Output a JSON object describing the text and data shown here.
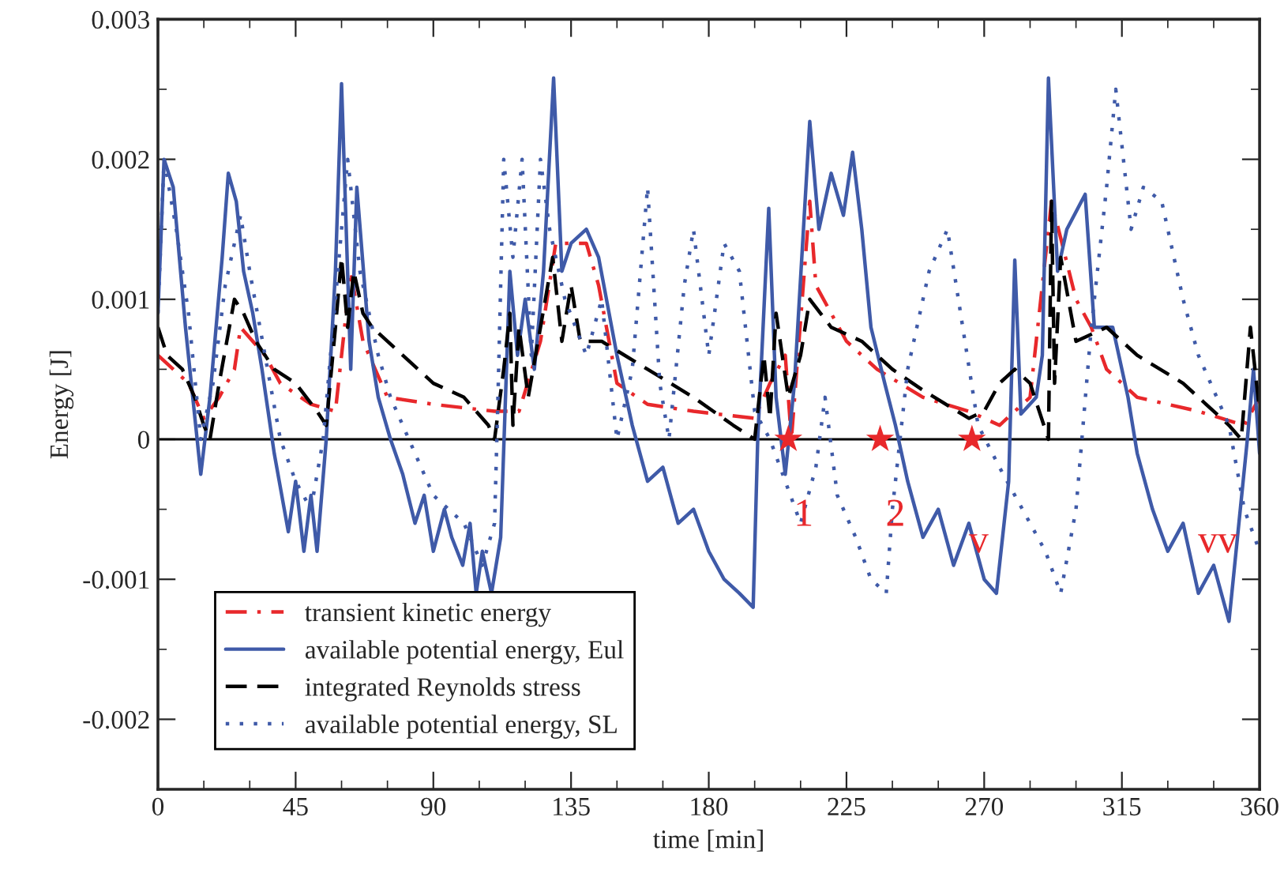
{
  "chart_data": {
    "type": "line",
    "xlabel": "time [min]",
    "ylabel": "Energy [J]",
    "xlim": [
      0,
      360
    ],
    "xticks": [
      0,
      45,
      90,
      135,
      180,
      225,
      270,
      315,
      360
    ],
    "ylim": [
      -0.0025,
      0.003
    ],
    "yticks": [
      {
        "value": -0.002,
        "label": "-0.002"
      },
      {
        "value": -0.001,
        "label": "-0.001"
      },
      {
        "value": 0,
        "label": "0"
      },
      {
        "value": 0.001,
        "label": "0.001"
      },
      {
        "value": 0.002,
        "label": "0.002"
      },
      {
        "value": 0.003,
        "label": "0.003"
      }
    ],
    "grid": false,
    "legend": "bottom left",
    "ref_lines": [
      {
        "axis": "y",
        "value": 0,
        "color": "#000000",
        "line_style": "solid"
      }
    ],
    "annotations": [
      {
        "text": "1",
        "x": 211,
        "y": -0.00055
      },
      {
        "text": "2",
        "x": 241,
        "y": -0.00055
      },
      "v",
      "vv"
    ],
    "series": [
      {
        "name": "transient kinetic energy",
        "color": "#e8282b",
        "line_style": "dashdot",
        "x": [
          0,
          10,
          15,
          20,
          25,
          27,
          35,
          40,
          50,
          58,
          60,
          63,
          67,
          75,
          90,
          110,
          118,
          125,
          130,
          140,
          144,
          150,
          160,
          175,
          195,
          200,
          205,
          207,
          213,
          215,
          225,
          235,
          250,
          265,
          275,
          285,
          292,
          300,
          305,
          310,
          320,
          340,
          355,
          360
        ],
        "values": [
          0.0006,
          0.0004,
          0.00015,
          0.0003,
          0.0005,
          0.0008,
          0.0006,
          0.0004,
          0.00025,
          0.0002,
          0.0006,
          0.0012,
          0.0007,
          0.0003,
          0.00025,
          0.0002,
          0.0002,
          0.0007,
          0.0014,
          0.0014,
          0.0011,
          0.0004,
          0.00025,
          0.0002,
          0.00015,
          0.0004,
          0.0006,
          0.0,
          0.0017,
          0.0011,
          0.0007,
          0.0005,
          0.0003,
          0.0002,
          0.0001,
          0.0003,
          0.0017,
          0.001,
          0.0008,
          0.0005,
          0.0003,
          0.0002,
          0.0001,
          0.0003
        ]
      },
      {
        "name": "available potential energy, Eul",
        "color": "#3f5aa8",
        "line_style": "solid",
        "x": [
          0,
          2,
          5,
          9,
          14,
          17,
          21,
          23,
          25.6,
          28,
          31,
          34,
          38,
          42.6,
          45,
          47.7,
          50,
          52,
          55,
          58,
          60,
          63,
          65,
          69,
          72,
          76,
          80,
          84,
          87,
          90,
          93.6,
          96,
          99.6,
          102,
          104,
          106,
          109,
          112,
          115,
          117.5,
          120,
          123,
          126,
          129.3,
          132,
          135,
          140,
          144,
          150,
          155,
          160,
          165,
          170,
          175,
          180,
          185,
          190,
          194.5,
          196,
          199.6,
          202,
          205,
          208,
          213,
          216,
          220,
          224,
          227,
          230,
          233,
          237.5,
          241,
          245,
          250,
          255,
          260,
          265,
          270,
          274,
          278,
          280,
          282,
          287,
          289,
          291,
          294,
          297,
          303,
          306,
          312,
          317,
          320,
          325,
          330,
          335,
          340,
          345,
          350,
          356,
          358,
          360
        ],
        "values": [
          0.0009,
          0.002,
          0.0018,
          0.0008,
          -0.00025,
          0.0003,
          0.0013,
          0.0019,
          0.0017,
          0.0012,
          0.0009,
          0.0005,
          -0.0001,
          -0.00066,
          -0.0003,
          -0.0008,
          -0.0004,
          -0.0008,
          0.0,
          0.0012,
          0.00254,
          0.0005,
          0.0018,
          0.0007,
          0.0003,
          0.0,
          -0.00025,
          -0.0006,
          -0.0004,
          -0.0008,
          -0.0005,
          -0.0007,
          -0.0009,
          -0.0006,
          -0.0011,
          -0.0008,
          -0.0011,
          -0.0007,
          0.0012,
          0.0006,
          0.001,
          0.0005,
          0.0012,
          0.00258,
          0.0012,
          0.0014,
          0.0015,
          0.0013,
          0.0006,
          0.0001,
          -0.0003,
          -0.0002,
          -0.0006,
          -0.0005,
          -0.0008,
          -0.001,
          -0.0011,
          -0.0012,
          0.0,
          0.00165,
          0.0003,
          -0.00025,
          0.0004,
          0.00227,
          0.0015,
          0.0019,
          0.0016,
          0.00205,
          0.0015,
          0.0008,
          0.0004,
          0.0001,
          -0.0003,
          -0.0007,
          -0.0005,
          -0.0009,
          -0.0006,
          -0.001,
          -0.0011,
          -0.0003,
          0.00128,
          0.00018,
          0.0003,
          0.0006,
          0.00258,
          0.0012,
          0.0015,
          0.00175,
          0.0008,
          0.0008,
          0.0003,
          -0.0001,
          -0.0005,
          -0.0008,
          -0.0006,
          -0.0011,
          -0.0009,
          -0.0013,
          0.0,
          0.0005,
          -0.0001
        ]
      },
      {
        "name": "integrated Reynolds stress",
        "color": "#000000",
        "line_style": "dashed",
        "x": [
          0,
          3,
          8,
          12,
          15,
          17,
          20,
          25,
          28,
          32,
          38,
          45,
          52,
          55,
          58,
          60,
          62,
          64,
          67,
          70,
          80,
          90,
          100,
          108,
          110,
          113,
          115,
          116,
          118,
          121,
          125,
          129,
          132,
          135,
          138,
          145,
          160,
          175,
          188,
          195,
          198,
          200,
          202,
          206,
          210,
          213,
          220,
          230,
          240,
          250,
          265,
          270,
          275,
          280,
          285,
          291,
          292,
          293,
          295,
          300,
          310,
          320,
          335,
          350,
          354,
          357,
          360
        ],
        "values": [
          0.0008,
          0.0006,
          0.0005,
          0.0003,
          0.0001,
          0.0,
          0.0004,
          0.001,
          0.0009,
          0.0007,
          0.0005,
          0.0004,
          0.0002,
          0.0001,
          0.0008,
          0.0013,
          0.0008,
          0.0012,
          0.0009,
          0.0008,
          0.0006,
          0.0004,
          0.0003,
          0.0001,
          0.0,
          0.0005,
          0.0009,
          0.0001,
          0.0008,
          0.0003,
          0.0008,
          0.0013,
          0.0007,
          0.0011,
          0.0007,
          0.0007,
          0.0005,
          0.0003,
          0.0001,
          0.0,
          0.0006,
          0.00015,
          0.0009,
          0.0003,
          0.0006,
          0.001,
          0.0008,
          0.0007,
          0.0005,
          0.00035,
          0.00015,
          0.0002,
          0.0004,
          0.0005,
          0.0004,
          0.0,
          0.0017,
          0.0004,
          0.0013,
          0.0007,
          0.0008,
          0.0006,
          0.0004,
          0.0001,
          0.0,
          0.0008,
          0.0002
        ]
      },
      {
        "name": "available potential energy, SL",
        "color": "#3f5aa8",
        "line_style": "dotted",
        "x": [
          0,
          2,
          6,
          10,
          14,
          18,
          22,
          27,
          30,
          35,
          40,
          45,
          50,
          54,
          60,
          62,
          66,
          72,
          76,
          80,
          90,
          100,
          106,
          110,
          111,
          113,
          116,
          119,
          122,
          125,
          128,
          133,
          140,
          145,
          150,
          155,
          160,
          164,
          167,
          172,
          175,
          180,
          185,
          190,
          195,
          200,
          205,
          210,
          215,
          218,
          222,
          228,
          233,
          238,
          240,
          245,
          252,
          258,
          263,
          268,
          275,
          280,
          285,
          290,
          295,
          300,
          305,
          310,
          313,
          318,
          322,
          328,
          335,
          340,
          350,
          355,
          360
        ],
        "values": [
          0.0009,
          0.002,
          0.0015,
          0.0009,
          0.0,
          0.0004,
          0.0011,
          0.0016,
          0.0012,
          0.0006,
          0.0,
          -0.0003,
          -0.0005,
          0.0,
          0.0015,
          0.002,
          0.0012,
          0.0006,
          0.0003,
          0.0001,
          -0.0004,
          -0.0006,
          -0.0009,
          -0.0006,
          0.0002,
          0.002,
          0.0013,
          0.002,
          0.0006,
          0.002,
          0.0015,
          0.001,
          0.0006,
          0.001,
          0.0,
          0.0005,
          0.0018,
          0.0004,
          0.0,
          0.0011,
          0.0015,
          0.0006,
          0.0014,
          0.0012,
          0.0002,
          0.0,
          -0.0003,
          -0.0006,
          -0.0002,
          0.0003,
          -0.0004,
          -0.0007,
          -0.001,
          -0.0011,
          -0.0005,
          0.0005,
          0.0012,
          0.0015,
          0.0008,
          0.0001,
          -0.0002,
          -0.0004,
          -0.0006,
          -0.0008,
          -0.0011,
          -0.0005,
          0.0008,
          0.0018,
          0.0025,
          0.0015,
          0.0018,
          0.0017,
          0.001,
          0.0006,
          0.0001,
          -0.0005,
          -0.0008
        ]
      },
      {
        "type": "scatter",
        "color": "#e8282b",
        "marker": "star",
        "x": [
          206,
          236,
          266
        ],
        "values": [
          0,
          0,
          0
        ]
      }
    ]
  }
}
